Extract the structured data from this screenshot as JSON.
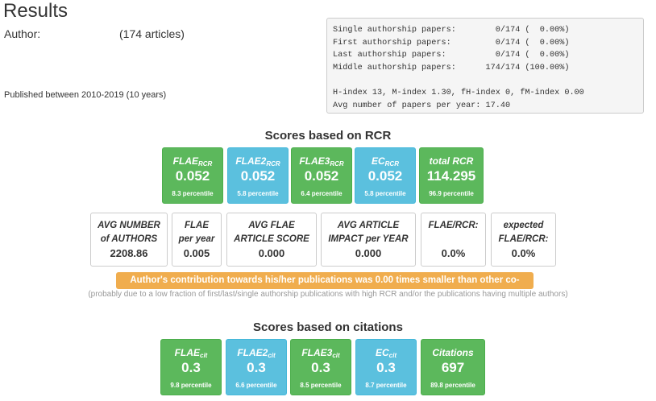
{
  "header": {
    "title": "Results",
    "author_label": "Author:",
    "articles": "(174 articles)",
    "published": "Published between 2010-2019 (10 years)"
  },
  "stats_lines": [
    "Single authorship papers:        0/174 (  0.00%)",
    "First authorship papers:         0/174 (  0.00%)",
    "Last authorship papers:          0/174 (  0.00%)",
    "Middle authorship papers:      174/174 (100.00%)",
    "",
    "H-index 13, M-index 1.30, fH-index 0, fM-index 0.00",
    "Avg number of papers per year: 17.40"
  ],
  "rcr": {
    "title": "Scores based on RCR",
    "tiles": [
      {
        "name": "FLAE",
        "sub": "RCR",
        "value": "0.052",
        "percentile": "8.3 percentile",
        "color": "green"
      },
      {
        "name": "FLAE2",
        "sub": "RCR",
        "value": "0.052",
        "percentile": "5.8 percentile",
        "color": "blue"
      },
      {
        "name": "FLAE3",
        "sub": "RCR",
        "value": "0.052",
        "percentile": "6.4 percentile",
        "color": "green"
      },
      {
        "name": "EC",
        "sub": "RCR",
        "value": "0.052",
        "percentile": "5.8 percentile",
        "color": "blue"
      },
      {
        "name": "total RCR",
        "sub": "",
        "value": "114.295",
        "percentile": "96.9 percentile",
        "color": "green"
      }
    ],
    "boxes": [
      {
        "line1": "AVG NUMBER",
        "line2": "of AUTHORS",
        "value": "2208.86"
      },
      {
        "line1": "FLAE",
        "line2": "per year",
        "value": "0.005"
      },
      {
        "line1": "AVG FLAE",
        "line2": "ARTICLE SCORE",
        "value": "0.000"
      },
      {
        "line1": "AVG ARTICLE",
        "line2": "IMPACT per YEAR",
        "value": "0.000"
      },
      {
        "line1": "FLAE/RCR:",
        "line2": "",
        "value": "0.0%"
      },
      {
        "line1": "expected",
        "line2": "FLAE/RCR:",
        "value": "0.0%"
      }
    ],
    "warning": "Author's contribution towards his/her publications was 0.00 times smaller than other co-authors",
    "note": "(probably due to a low fraction of first/last/single authorship publications with high RCR and/or the publications having multiple authors)"
  },
  "citations": {
    "title": "Scores based on citations",
    "tiles": [
      {
        "name": "FLAE",
        "sub": "cit",
        "value": "0.3",
        "percentile": "9.8 percentile",
        "color": "green"
      },
      {
        "name": "FLAE2",
        "sub": "cit",
        "value": "0.3",
        "percentile": "6.6 percentile",
        "color": "blue"
      },
      {
        "name": "FLAE3",
        "sub": "cit",
        "value": "0.3",
        "percentile": "8.5 percentile",
        "color": "green"
      },
      {
        "name": "EC",
        "sub": "cit",
        "value": "0.3",
        "percentile": "8.7 percentile",
        "color": "blue"
      },
      {
        "name": "Citations",
        "sub": "",
        "value": "697",
        "percentile": "89.8 percentile",
        "color": "green"
      }
    ]
  }
}
